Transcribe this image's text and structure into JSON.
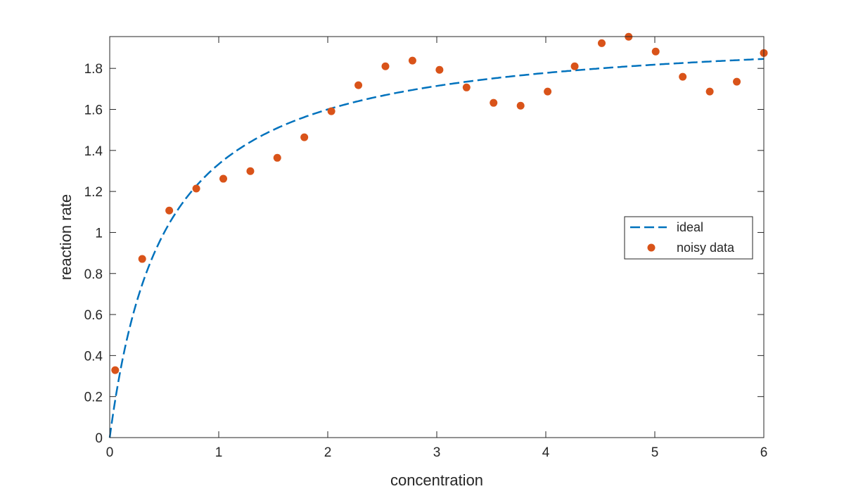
{
  "chart_data": {
    "type": "scatter",
    "title": "",
    "xlabel": "concentration",
    "ylabel": "reaction rate",
    "xlim": [
      0,
      6
    ],
    "ylim": [
      0,
      1.955
    ],
    "xticks": [
      "0",
      "1",
      "2",
      "3",
      "4",
      "5",
      "6"
    ],
    "yticks": [
      "0",
      "0.2",
      "0.4",
      "0.6",
      "0.8",
      "1",
      "1.2",
      "1.4",
      "1.6",
      "1.8"
    ],
    "grid": false,
    "legend_position": "right",
    "series": [
      {
        "name": "ideal",
        "type": "line",
        "style": "dashed",
        "color": "#0072BD",
        "model": "2*x/(0.5+x)",
        "vmax": 2.0,
        "km": 0.5
      },
      {
        "name": "noisy data",
        "type": "scatter",
        "color": "#D95319",
        "x": [
          0.05,
          0.298,
          0.546,
          0.794,
          1.042,
          1.29,
          1.537,
          1.785,
          2.033,
          2.281,
          2.529,
          2.777,
          3.025,
          3.273,
          3.521,
          3.769,
          4.017,
          4.265,
          4.513,
          4.76,
          5.008,
          5.256,
          5.504,
          5.752,
          6.0
        ],
        "y": [
          0.329,
          0.871,
          1.107,
          1.214,
          1.262,
          1.299,
          1.364,
          1.464,
          1.591,
          1.718,
          1.81,
          1.838,
          1.793,
          1.707,
          1.632,
          1.618,
          1.687,
          1.81,
          1.923,
          1.954,
          1.882,
          1.759,
          1.687,
          1.735,
          1.875
        ]
      }
    ]
  }
}
